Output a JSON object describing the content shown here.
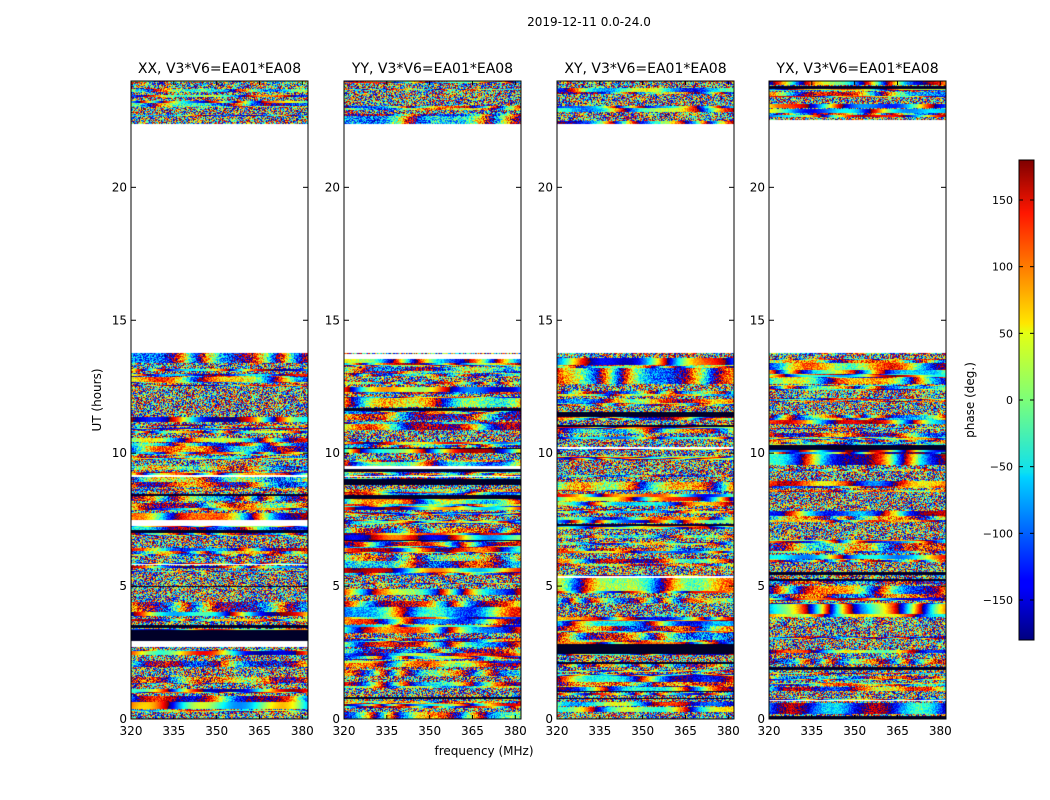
{
  "chart_data": {
    "type": "heatmap",
    "title": "2019-12-11 0.0-24.0",
    "xlabel": "frequency (MHz)",
    "ylabel": "UT (hours)",
    "x_ticks": [
      320,
      335,
      350,
      365,
      380
    ],
    "y_ticks": [
      0,
      5,
      10,
      15,
      20
    ],
    "xlim": [
      320,
      382
    ],
    "ylim": [
      0,
      24
    ],
    "panels": [
      {
        "title": "XX, V3*V6=EA01*EA08",
        "seed": 11
      },
      {
        "title": "YY, V3*V6=EA01*EA08",
        "seed": 23
      },
      {
        "title": "XY, V3*V6=EA01*EA08",
        "seed": 37
      },
      {
        "title": "YX, V3*V6=EA01*EA08",
        "seed": 53
      }
    ],
    "data_intervals_hours": [
      [
        0,
        13.8
      ],
      [
        22.4,
        24
      ]
    ],
    "gaps_hours": [
      [
        13.8,
        22.4
      ]
    ],
    "colorbar": {
      "label": "phase (deg.)",
      "min": -180,
      "max": 180,
      "ticks": [
        -150,
        -100,
        -50,
        0,
        50,
        100,
        150
      ],
      "tick_labels": [
        "−150",
        "−100",
        "−50",
        "0",
        "50",
        "100",
        "150"
      ],
      "colormap": "jet"
    }
  }
}
